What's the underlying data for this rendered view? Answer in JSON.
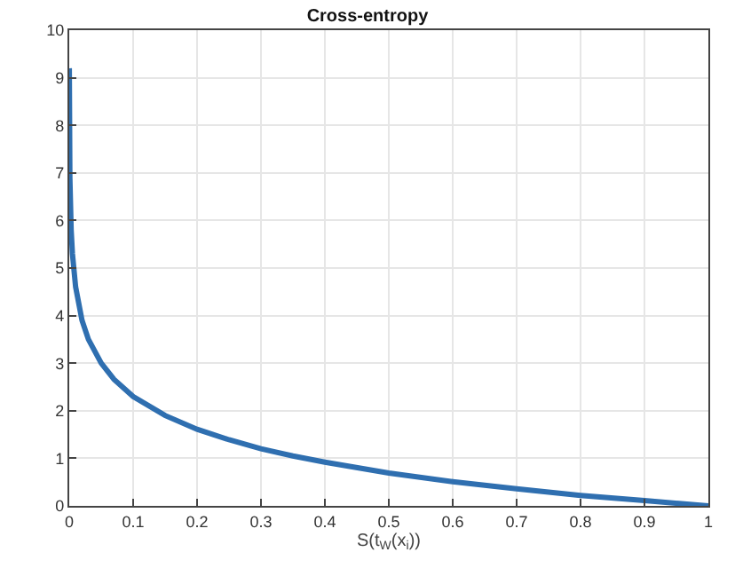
{
  "chart_data": {
    "type": "line",
    "title": "Cross-entropy",
    "xlabel": "S(t$_{W}$(x$_{i}$))",
    "x": [
      0.0001,
      0.001,
      0.003,
      0.005,
      0.01,
      0.02,
      0.03,
      0.05,
      0.07,
      0.1,
      0.15,
      0.2,
      0.25,
      0.3,
      0.35,
      0.4,
      0.5,
      0.6,
      0.7,
      0.8,
      0.9,
      1
    ],
    "series": [
      {
        "color": "#2f6fb0",
        "values": [
          9.2,
          6.9,
          5.8,
          5.3,
          4.6,
          3.9,
          3.5,
          3.0,
          2.66,
          2.3,
          1.9,
          1.61,
          1.39,
          1.2,
          1.05,
          0.92,
          0.69,
          0.51,
          0.36,
          0.22,
          0.11,
          0
        ]
      }
    ],
    "xlim": [
      0,
      1
    ],
    "xticks": [
      0,
      0.1,
      0.2,
      0.3,
      0.4,
      0.5,
      0.6,
      0.7,
      0.8,
      0.9,
      1
    ],
    "ylim": [
      0,
      10
    ],
    "yticks": [
      0,
      1,
      2,
      3,
      4,
      5,
      6,
      7,
      8,
      9,
      10
    ],
    "grid": true,
    "marker": "none",
    "line_style": "solid"
  }
}
